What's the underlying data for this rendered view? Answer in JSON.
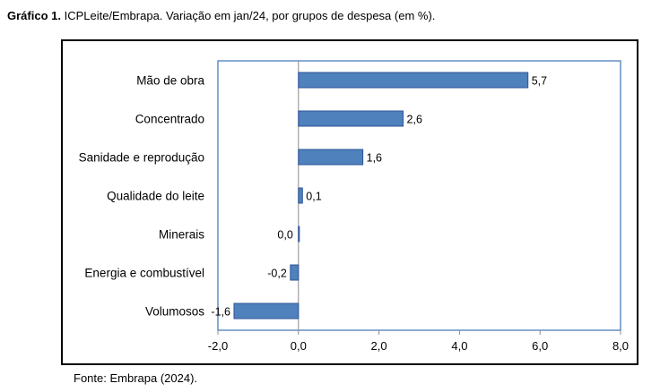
{
  "caption": {
    "bold": "Gráfico 1.",
    "text": " ICPLeite/Embrapa. Variação em jan/24, por grupos de despesa (em %)."
  },
  "source": "Fonte: Embrapa (2024).",
  "chart_data": {
    "type": "bar",
    "orientation": "horizontal",
    "categories": [
      "Mão de obra",
      "Concentrado",
      "Sanidade e reprodução",
      "Qualidade do leite",
      "Minerais",
      "Energia e combustível",
      "Volumosos"
    ],
    "values": [
      5.7,
      2.6,
      1.6,
      0.1,
      0.0,
      -0.2,
      -1.6
    ],
    "value_labels": [
      "5,7",
      "2,6",
      "1,6",
      "0,1",
      "0,0",
      "-0,2",
      "-1,6"
    ],
    "xlim": [
      -2.0,
      8.0
    ],
    "ticks": [
      -2.0,
      0.0,
      2.0,
      4.0,
      6.0,
      8.0
    ],
    "tick_labels": [
      "-2,0",
      "0,0",
      "2,0",
      "4,0",
      "6,0",
      "8,0"
    ],
    "bar_color": "#4f81bd",
    "bar_edge_color": "#2f5597",
    "plot_border_color": "#4a7ebb",
    "grid": false,
    "legend": "none"
  }
}
